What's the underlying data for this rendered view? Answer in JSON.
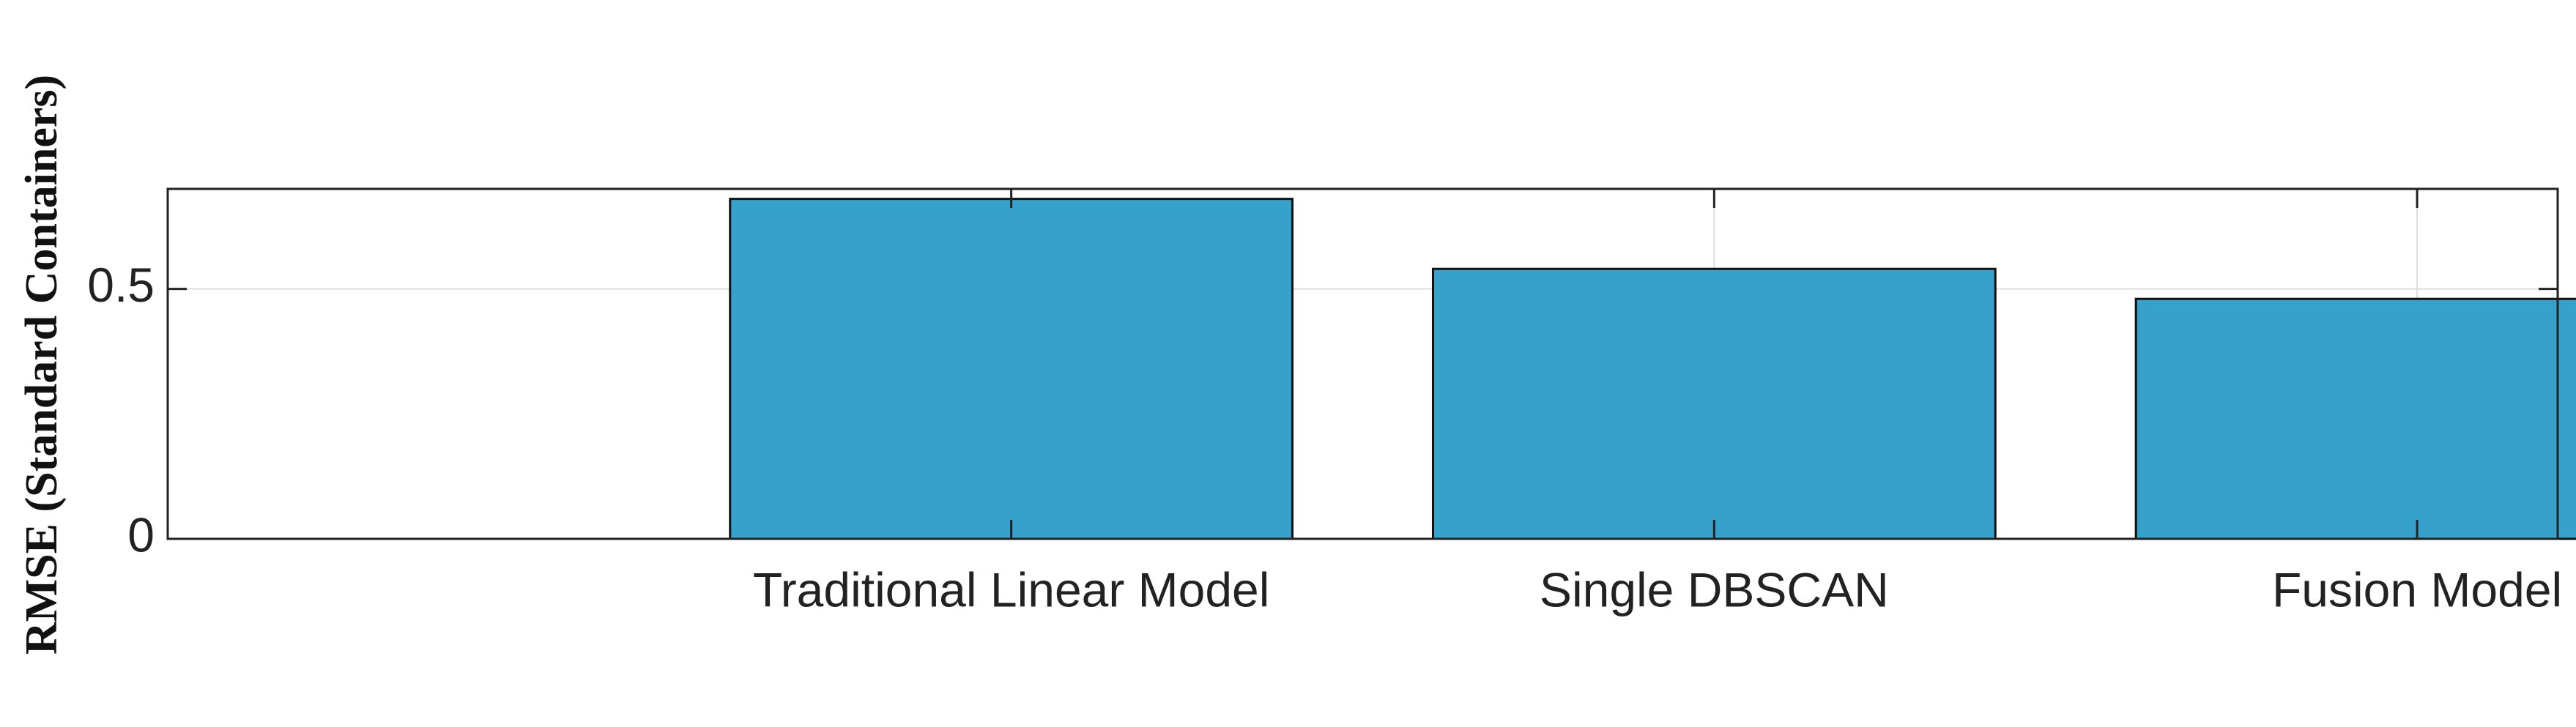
{
  "chart_data": {
    "type": "bar",
    "y_label": "RMSE (Standard Containers)",
    "categories": [
      "Traditional Linear Model",
      "Single DBSCAN",
      "Fusion Model"
    ],
    "values": [
      0.68,
      0.54,
      0.48
    ],
    "color": "#36a2cb",
    "ylim": [
      0,
      0.7
    ],
    "yticks": [
      0,
      0.5
    ],
    "grid": true
  }
}
